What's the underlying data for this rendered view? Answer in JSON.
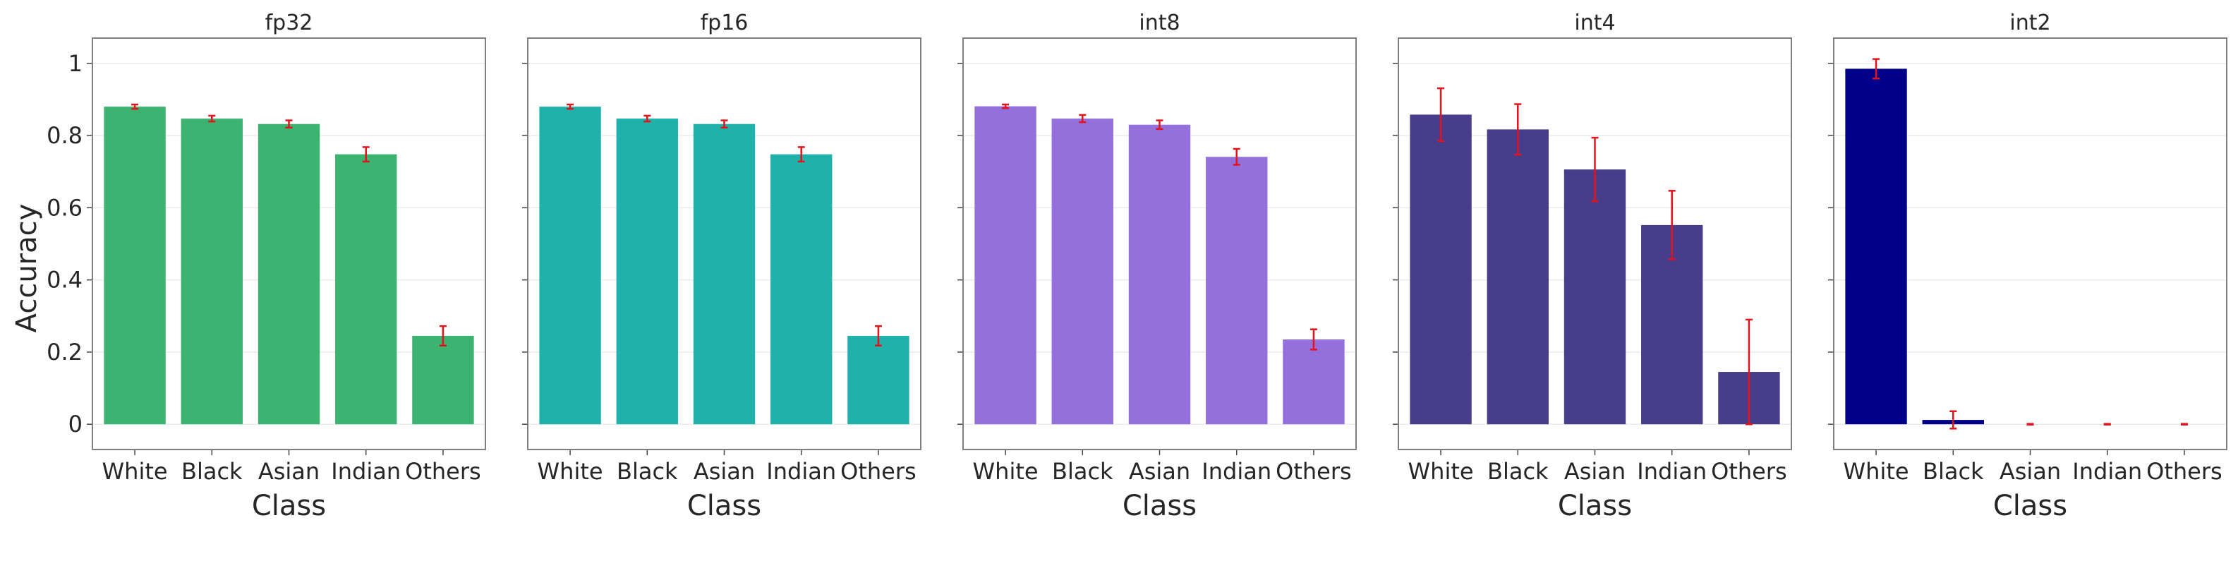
{
  "figure": {
    "ylabel": "Accuracy",
    "yticks": [
      0,
      0.2,
      0.4,
      0.6,
      0.8,
      1
    ],
    "ytick_labels": [
      "0",
      "0.2",
      "0.4",
      "0.6",
      "0.8",
      "1"
    ],
    "errorbar_color": "#e3121b",
    "grid_color": "#ebebeb",
    "frame_color": "#7f7f7f"
  },
  "chart_data": [
    {
      "type": "bar",
      "title": "fp32",
      "xlabel": "Class",
      "ylabel": "Accuracy",
      "categories": [
        "White",
        "Black",
        "Asian",
        "Indian",
        "Others"
      ],
      "values": [
        0.88,
        0.847,
        0.832,
        0.748,
        0.245
      ],
      "errors": [
        0.006,
        0.008,
        0.01,
        0.02,
        0.027
      ],
      "color": "#3cb371",
      "ylim": [
        -0.07,
        1.07
      ],
      "grid": true
    },
    {
      "type": "bar",
      "title": "fp16",
      "xlabel": "Class",
      "ylabel": "",
      "categories": [
        "White",
        "Black",
        "Asian",
        "Indian",
        "Others"
      ],
      "values": [
        0.88,
        0.847,
        0.832,
        0.748,
        0.245
      ],
      "errors": [
        0.006,
        0.008,
        0.01,
        0.02,
        0.027
      ],
      "color": "#20b2aa",
      "ylim": [
        -0.07,
        1.07
      ],
      "grid": true
    },
    {
      "type": "bar",
      "title": "int8",
      "xlabel": "Class",
      "ylabel": "",
      "categories": [
        "White",
        "Black",
        "Asian",
        "Indian",
        "Others"
      ],
      "values": [
        0.881,
        0.847,
        0.83,
        0.741,
        0.235
      ],
      "errors": [
        0.005,
        0.01,
        0.012,
        0.022,
        0.028
      ],
      "color": "#9370db",
      "ylim": [
        -0.07,
        1.07
      ],
      "grid": true
    },
    {
      "type": "bar",
      "title": "int4",
      "xlabel": "Class",
      "ylabel": "",
      "categories": [
        "White",
        "Black",
        "Asian",
        "Indian",
        "Others"
      ],
      "values": [
        0.858,
        0.817,
        0.706,
        0.552,
        0.145
      ],
      "errors": [
        0.073,
        0.07,
        0.088,
        0.095,
        0.145
      ],
      "color": "#483d8b",
      "ylim": [
        -0.07,
        1.07
      ],
      "grid": true
    },
    {
      "type": "bar",
      "title": "int2",
      "xlabel": "Class",
      "ylabel": "",
      "categories": [
        "White",
        "Black",
        "Asian",
        "Indian",
        "Others"
      ],
      "values": [
        0.985,
        0.012,
        0.0,
        0.0,
        0.0
      ],
      "errors": [
        0.027,
        0.024,
        0.001,
        0.001,
        0.001
      ],
      "color": "#00008b",
      "ylim": [
        -0.07,
        1.07
      ],
      "grid": true
    }
  ]
}
